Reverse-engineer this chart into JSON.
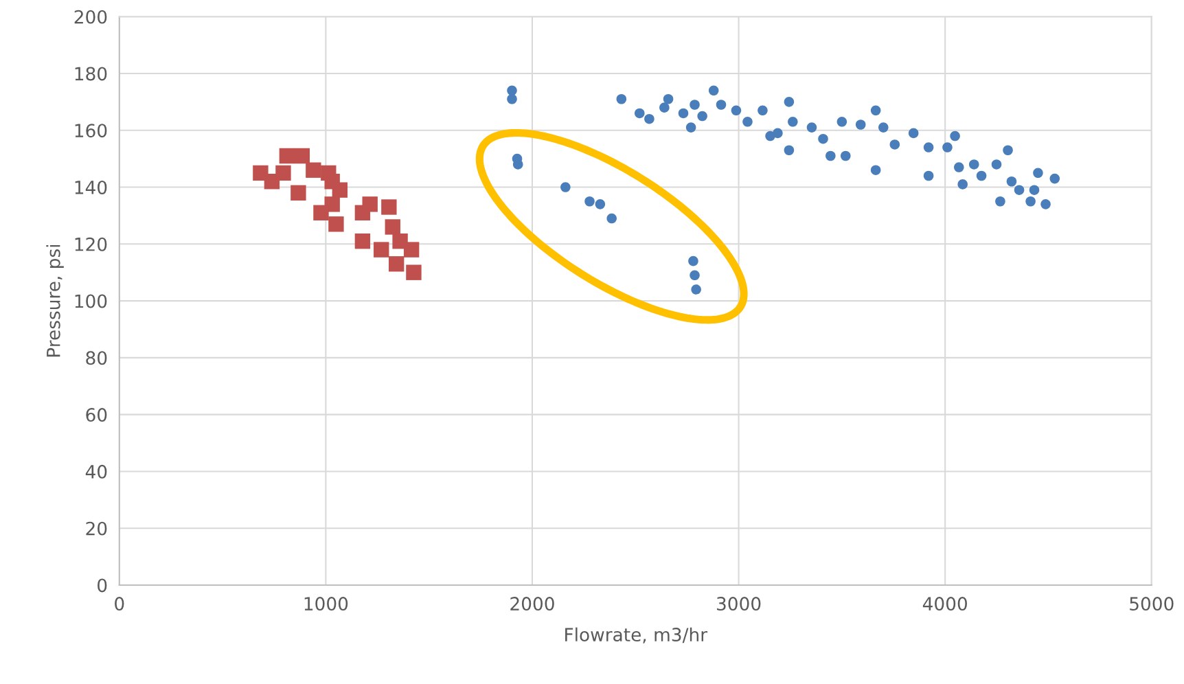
{
  "chart_data": {
    "type": "scatter",
    "xlabel": "Flowrate, m3/hr",
    "ylabel": "Pressure, psi",
    "xlim": [
      0,
      5000
    ],
    "xticks": [
      0,
      1000,
      2000,
      3000,
      4000,
      5000
    ],
    "ylim": [
      0,
      200
    ],
    "yticks": [
      0,
      20,
      40,
      60,
      80,
      100,
      120,
      140,
      160,
      180,
      200
    ],
    "grid": true,
    "legend": false,
    "series": [
      {
        "color": "#c0504d",
        "marker": "square",
        "x": [
          684,
          739,
          794,
          812,
          885,
          867,
          940,
          977,
          1013,
          1031,
          1031,
          1050,
          1068,
          1178,
          1214,
          1178,
          1306,
          1269,
          1324,
          1342,
          1360,
          1415,
          1426
        ],
        "values": [
          145,
          142,
          145,
          151,
          151,
          138,
          146,
          131,
          145,
          142,
          134,
          127,
          139,
          131,
          134,
          121,
          133,
          118,
          126,
          113,
          121,
          118,
          110
        ]
      },
      {
        "color": "#4a7ebb",
        "marker": "circle",
        "x": [
          1902,
          1902,
          1927,
          1931,
          2161,
          2278,
          2329,
          2385,
          2780,
          2787,
          2794,
          2432,
          2520,
          2567,
          2640,
          2659,
          2732,
          2769,
          2787,
          2824,
          2879,
          2915,
          2988,
          3043,
          3116,
          3153,
          3189,
          3244,
          3262,
          3244,
          3354,
          3409,
          3445,
          3518,
          3500,
          3591,
          3664,
          3664,
          3701,
          3756,
          3847,
          3920,
          3920,
          4011,
          4048,
          4067,
          4085,
          4140,
          4176,
          4249,
          4267,
          4304,
          4322,
          4359,
          4414,
          4432,
          4450,
          4487,
          4531
        ],
        "values": [
          174,
          171,
          150,
          148,
          140,
          135,
          134,
          129,
          114,
          109,
          104,
          171,
          166,
          164,
          168,
          171,
          166,
          161,
          169,
          165,
          174,
          169,
          167,
          163,
          167,
          158,
          159,
          170,
          163,
          153,
          161,
          157,
          151,
          151,
          163,
          162,
          167,
          146,
          161,
          155,
          159,
          154,
          144,
          154,
          158,
          147,
          141,
          148,
          144,
          148,
          135,
          153,
          142,
          139,
          135,
          139,
          145,
          134,
          143
        ]
      }
    ]
  }
}
